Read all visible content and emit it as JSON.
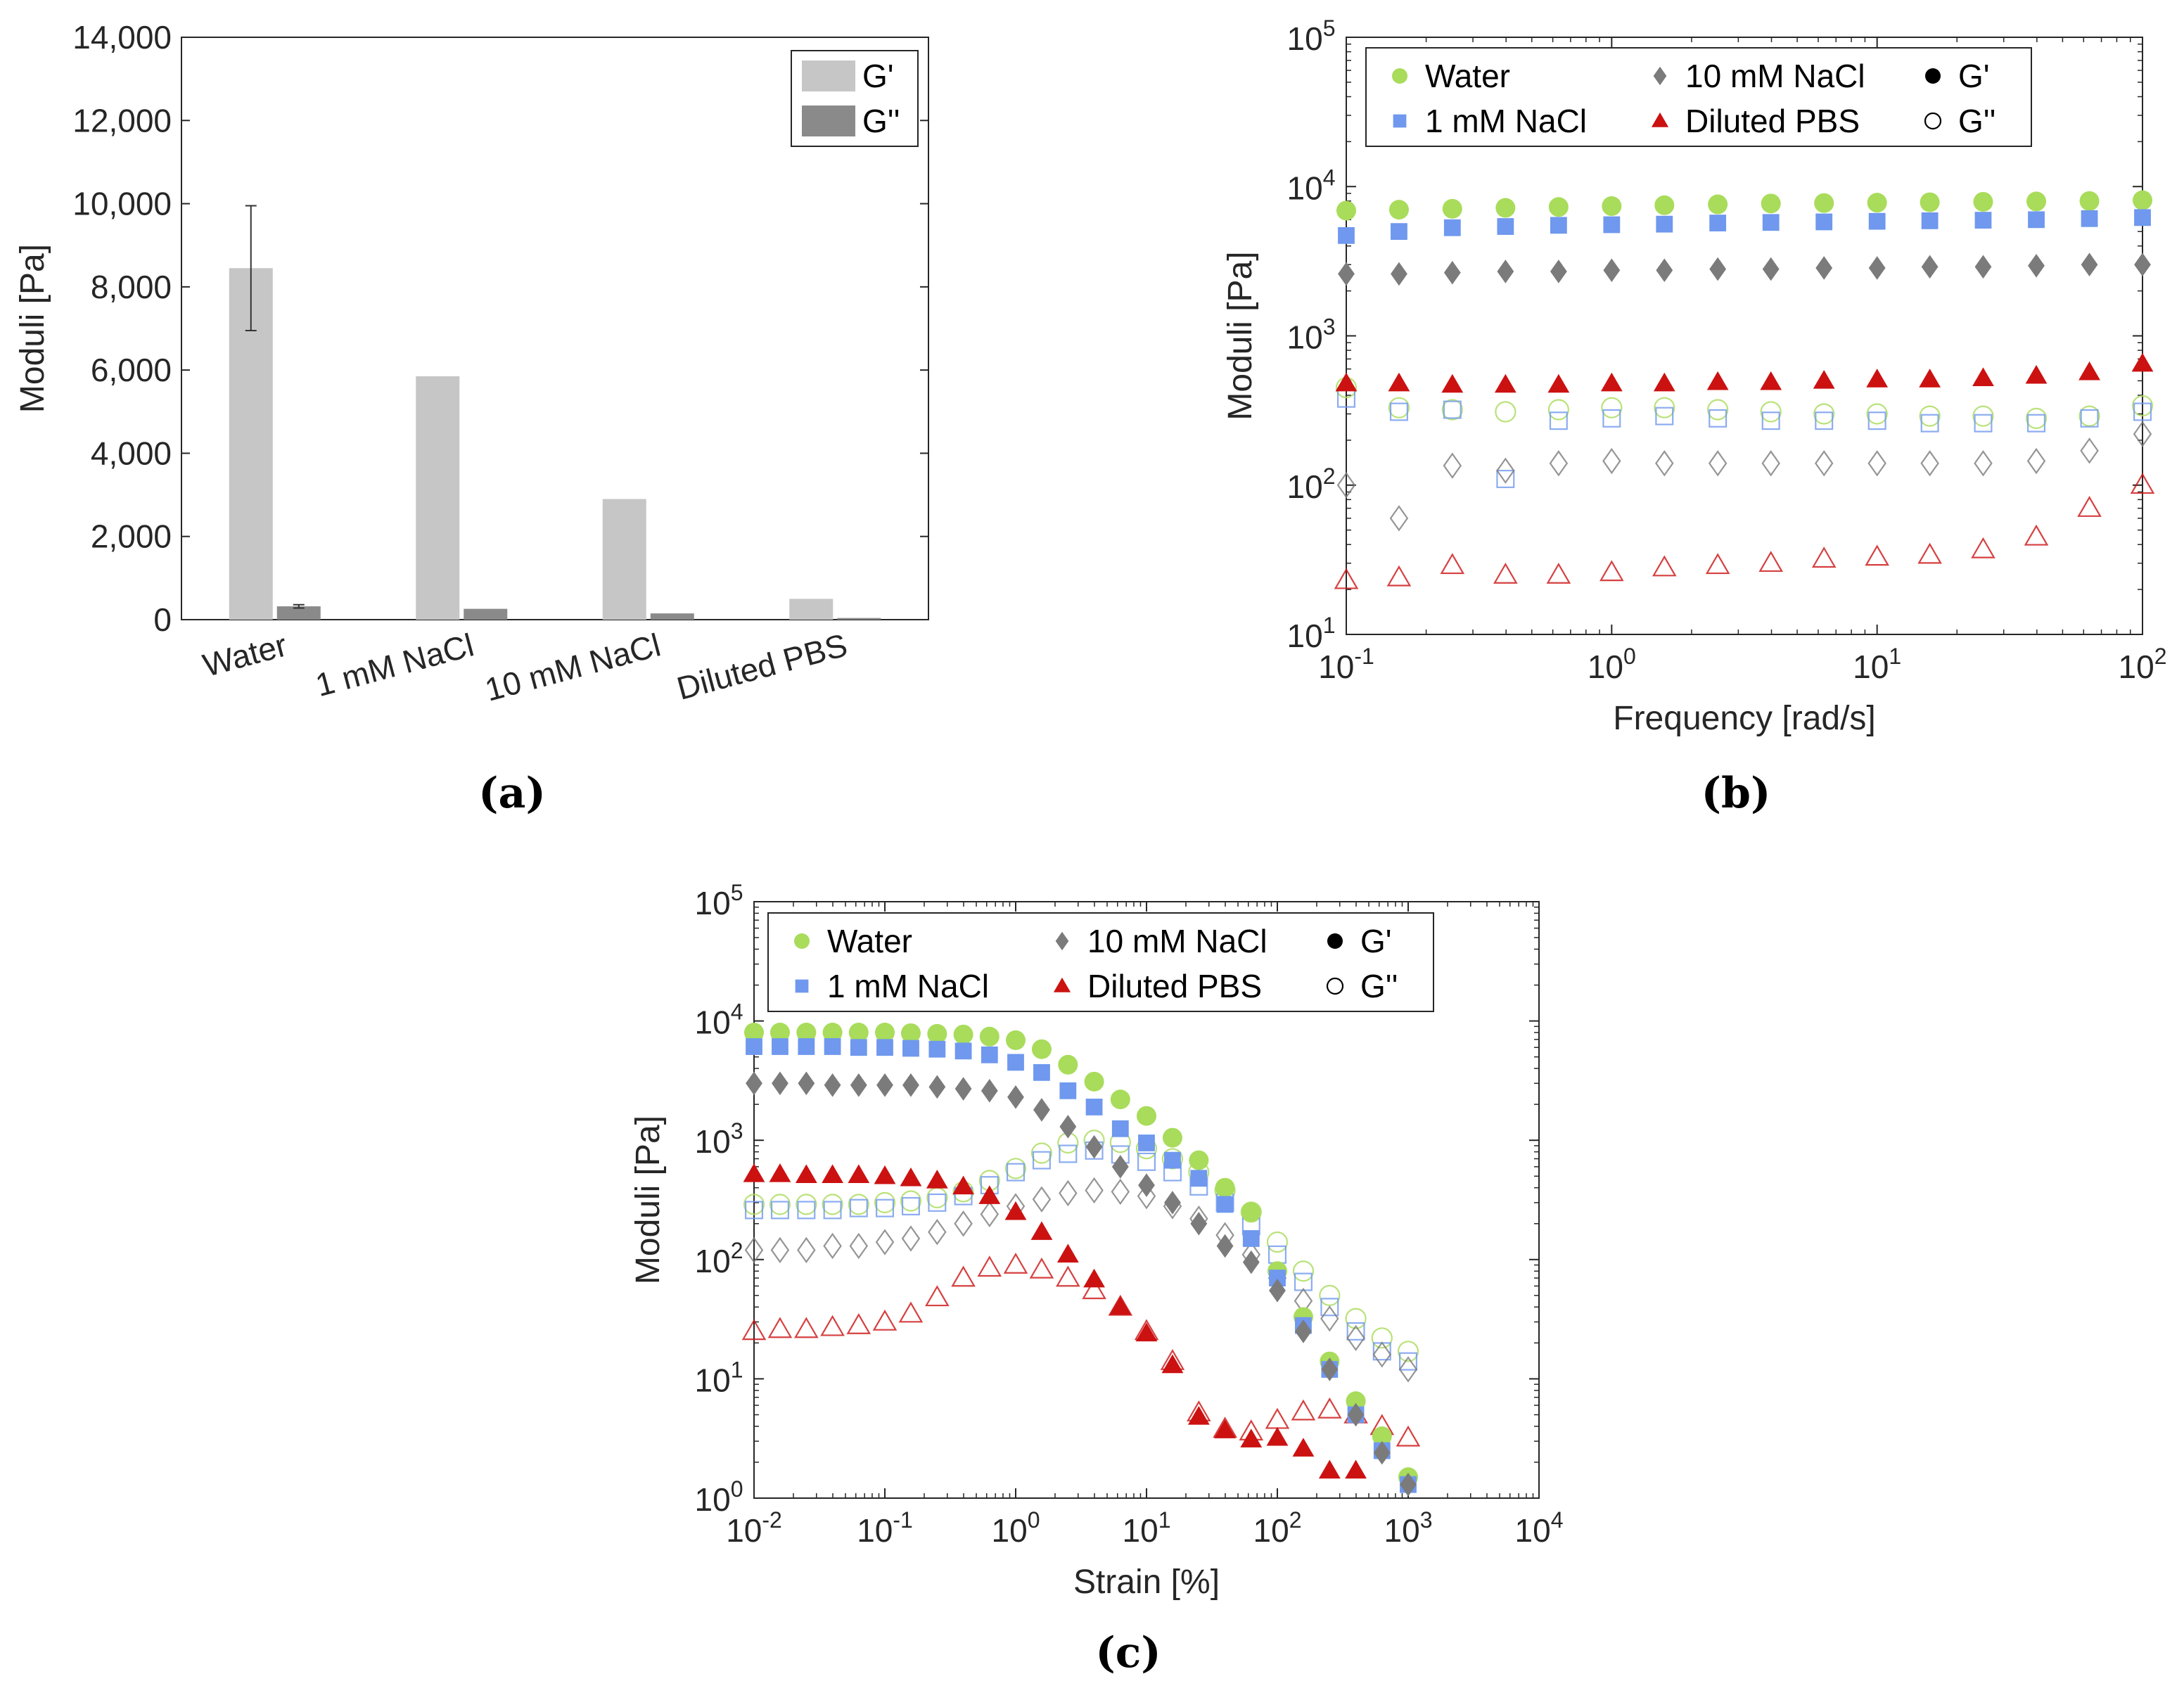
{
  "colors": {
    "Water": "#a8dc5a",
    "1 mM NaCl": "#6f98ee",
    "10 mM NaCl": "#7b7b7b",
    "Diluted PBS": "#cc1111",
    "G'_bar": "#c6c6c6",
    "G''_bar": "#8a8a8a",
    "axis": "#262626"
  },
  "chart_data": [
    {
      "panel": "(a)",
      "type": "bar",
      "ylabel": "Moduli [Pa]",
      "ylim": [
        0,
        14000
      ],
      "yticks": [
        0,
        2000,
        4000,
        6000,
        8000,
        10000,
        12000,
        14000
      ],
      "ytick_labels": [
        "0",
        "2,000",
        "4,000",
        "6,000",
        "8,000",
        "10,000",
        "12,000",
        "14,000"
      ],
      "categories": [
        "Water",
        "1 mM NaCl",
        "10 mM NaCl",
        "Diluted PBS"
      ],
      "series": [
        {
          "name": "G'",
          "values": [
            8450,
            5850,
            2900,
            500
          ],
          "error": [
            1500,
            null,
            null,
            null
          ]
        },
        {
          "name": "G''",
          "values": [
            320,
            260,
            150,
            40
          ],
          "error": [
            40,
            null,
            null,
            null
          ]
        }
      ],
      "legend": "top-right"
    },
    {
      "panel": "(b)",
      "type": "scatter",
      "xscale": "log",
      "yscale": "log",
      "xlabel": "Frequency [rad/s]",
      "ylabel": "Moduli [Pa]",
      "xlim": [
        0.1,
        100
      ],
      "ylim": [
        10,
        100000
      ],
      "x": [
        0.1,
        0.158,
        0.251,
        0.398,
        0.631,
        1,
        1.58,
        2.51,
        3.98,
        6.31,
        10,
        15.8,
        25.1,
        39.8,
        63.1,
        100
      ],
      "series": [
        {
          "sample": "Water",
          "modulus": "G'",
          "values": [
            6900,
            7000,
            7100,
            7200,
            7300,
            7400,
            7500,
            7600,
            7700,
            7750,
            7800,
            7850,
            7900,
            7950,
            8000,
            8100
          ]
        },
        {
          "sample": "1 mM NaCl",
          "modulus": "G'",
          "values": [
            4700,
            5000,
            5300,
            5400,
            5500,
            5550,
            5600,
            5700,
            5750,
            5800,
            5850,
            5900,
            5950,
            6000,
            6100,
            6200
          ]
        },
        {
          "sample": "10 mM NaCl",
          "modulus": "G'",
          "values": [
            2600,
            2600,
            2650,
            2700,
            2700,
            2750,
            2750,
            2800,
            2800,
            2850,
            2850,
            2900,
            2900,
            2950,
            3000,
            3000
          ]
        },
        {
          "sample": "Diluted PBS",
          "modulus": "G'",
          "values": [
            480,
            480,
            470,
            470,
            470,
            480,
            480,
            490,
            490,
            500,
            510,
            510,
            520,
            540,
            570,
            650
          ]
        },
        {
          "sample": "Water",
          "modulus": "G''",
          "values": [
            450,
            330,
            320,
            310,
            320,
            330,
            330,
            320,
            310,
            300,
            300,
            290,
            290,
            280,
            290,
            340
          ]
        },
        {
          "sample": "1 mM NaCl",
          "modulus": "G''",
          "values": [
            380,
            310,
            320,
            110,
            270,
            280,
            290,
            280,
            270,
            270,
            270,
            260,
            260,
            260,
            280,
            310
          ]
        },
        {
          "sample": "10 mM NaCl",
          "modulus": "G''",
          "values": [
            100,
            60,
            135,
            125,
            140,
            145,
            140,
            140,
            140,
            140,
            140,
            140,
            140,
            145,
            170,
            220
          ]
        },
        {
          "sample": "Diluted PBS",
          "modulus": "G''",
          "values": [
            23,
            24,
            29,
            25,
            25,
            26,
            28,
            29,
            30,
            32,
            33,
            34,
            37,
            45,
            70,
            100
          ]
        }
      ],
      "legend": "top"
    },
    {
      "panel": "(c)",
      "type": "scatter",
      "xscale": "log",
      "yscale": "log",
      "xlabel": "Strain [%]",
      "ylabel": "Moduli [Pa]",
      "xlim": [
        0.01,
        10000
      ],
      "ylim": [
        1,
        100000
      ],
      "x": [
        0.01,
        0.0158,
        0.0251,
        0.0398,
        0.0631,
        0.1,
        0.158,
        0.251,
        0.398,
        0.631,
        1,
        1.58,
        2.51,
        3.98,
        6.31,
        10,
        15.8,
        25.1,
        39.8,
        63.1,
        100,
        158,
        251,
        398,
        631,
        1000
      ],
      "series": [
        {
          "sample": "Water",
          "modulus": "G'",
          "values": [
            8000,
            8000,
            8000,
            8000,
            8000,
            8000,
            7900,
            7800,
            7700,
            7400,
            6900,
            5800,
            4300,
            3100,
            2200,
            1600,
            1050,
            680,
            400,
            250,
            80,
            33,
            14,
            6.5,
            3.3,
            1.5
          ]
        },
        {
          "sample": "1 mM NaCl",
          "modulus": "G'",
          "values": [
            6100,
            6100,
            6100,
            6100,
            6000,
            6000,
            5900,
            5800,
            5600,
            5200,
            4500,
            3700,
            2600,
            1900,
            1250,
            950,
            680,
            480,
            290,
            150,
            70,
            28,
            12,
            5,
            2.5,
            1.3
          ]
        },
        {
          "sample": "10 mM NaCl",
          "modulus": "G'",
          "values": [
            3000,
            3000,
            3000,
            2900,
            2900,
            2900,
            2900,
            2800,
            2700,
            2600,
            2300,
            1800,
            1300,
            880,
            600,
            420,
            300,
            200,
            130,
            95,
            55,
            25,
            12,
            5,
            2.4,
            1.3
          ]
        },
        {
          "sample": "Diluted PBS",
          "modulus": "G'",
          "values": [
            520,
            520,
            510,
            510,
            510,
            500,
            480,
            460,
            410,
            340,
            250,
            170,
            110,
            68,
            40,
            24,
            13,
            4.8,
            3.7,
            3.1,
            3.2,
            2.6,
            1.7,
            1.7,
            null,
            null
          ]
        },
        {
          "sample": "Water",
          "modulus": "G''",
          "values": [
            290,
            290,
            290,
            290,
            290,
            300,
            310,
            330,
            370,
            460,
            580,
            780,
            950,
            1000,
            960,
            850,
            700,
            540,
            380,
            250,
            140,
            80,
            50,
            32,
            22,
            17
          ]
        },
        {
          "sample": "1 mM NaCl",
          "modulus": "G''",
          "values": [
            260,
            260,
            260,
            260,
            270,
            270,
            280,
            300,
            340,
            420,
            540,
            680,
            770,
            820,
            760,
            660,
            540,
            410,
            300,
            190,
            110,
            65,
            40,
            25,
            17,
            14
          ]
        },
        {
          "sample": "10 mM NaCl",
          "modulus": "G''",
          "values": [
            120,
            120,
            120,
            130,
            130,
            140,
            150,
            170,
            200,
            240,
            280,
            320,
            360,
            380,
            370,
            340,
            280,
            220,
            160,
            110,
            70,
            45,
            32,
            22,
            16,
            12
          ]
        },
        {
          "sample": "Diluted PBS",
          "modulus": "G''",
          "values": [
            25,
            26,
            26,
            27,
            28,
            30,
            35,
            48,
            70,
            85,
            90,
            82,
            70,
            55,
            40,
            25,
            14,
            5.2,
            3.8,
            3.6,
            4.5,
            5.3,
            5.5,
            5,
            4,
            3.2
          ]
        }
      ],
      "legend": "top"
    }
  ],
  "legend_items": [
    "Water",
    "1 mM NaCl",
    "10 mM NaCl",
    "Diluted PBS",
    "G'",
    "G''"
  ],
  "captions": [
    "(a)",
    "(b)",
    "(c)"
  ]
}
